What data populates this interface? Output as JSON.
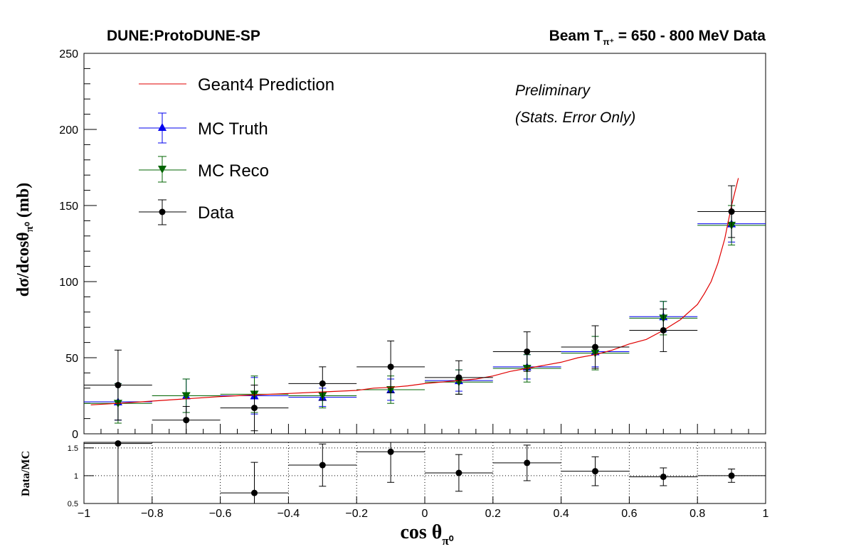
{
  "header": {
    "left_title": "DUNE:ProtoDUNE-SP",
    "right_title_pre": "Beam T",
    "right_title_sub": "π⁺",
    "right_title_post": " = 650 - 800 MeV Data"
  },
  "annotations": {
    "line1": "Preliminary",
    "line2": "(Stats. Error Only)"
  },
  "legend": {
    "geant4": "Geant4 Prediction",
    "mc_truth": "MC Truth",
    "mc_reco": "MC Reco",
    "data": "Data"
  },
  "colors": {
    "geant4": "#e00000",
    "mc_truth": "#0000ee",
    "mc_reco": "#006400",
    "data": "#000000"
  },
  "axes": {
    "ylabel_main": "dσ/dcosθ",
    "ylabel_main_sub": "π⁰",
    "ylabel_main_unit": " (mb)",
    "ylabel_ratio": "Data/MC",
    "xlabel": "cos  θ",
    "xlabel_sub": "π⁰"
  },
  "chart_data": [
    {
      "type": "scatter",
      "panel": "main",
      "xlim": [
        -1,
        1
      ],
      "ylim": [
        0,
        250
      ],
      "x_ticks": [
        -1,
        -0.8,
        -0.6,
        -0.4,
        -0.2,
        0,
        0.2,
        0.4,
        0.6,
        0.8,
        1
      ],
      "x_tick_labels": [
        "−1",
        "−0.8",
        "−0.6",
        "−0.4",
        "−0.2",
        "0",
        "0.2",
        "0.4",
        "0.6",
        "0.8",
        "1"
      ],
      "y_ticks": [
        0,
        50,
        100,
        150,
        200,
        250
      ],
      "y_tick_labels": [
        "0",
        "50",
        "100",
        "150",
        "200",
        "250"
      ],
      "series": [
        {
          "name": "Data",
          "marker": "circle",
          "x": [
            -0.9,
            -0.7,
            -0.5,
            -0.3,
            -0.1,
            0.1,
            0.3,
            0.5,
            0.7,
            0.9
          ],
          "xerr": [
            0.1,
            0.1,
            0.1,
            0.1,
            0.1,
            0.1,
            0.1,
            0.1,
            0.1,
            0.1
          ],
          "y": [
            32,
            9,
            17,
            33,
            44,
            37,
            54,
            57,
            68,
            146
          ],
          "yerr": [
            23,
            9,
            15,
            11,
            17,
            11,
            13,
            14,
            14,
            17
          ]
        },
        {
          "name": "MC Truth",
          "marker": "triangle-up",
          "x": [
            -0.9,
            -0.7,
            -0.5,
            -0.3,
            -0.1,
            0.1,
            0.3,
            0.5,
            0.7,
            0.9
          ],
          "xerr": [
            0.1,
            0.1,
            0.1,
            0.1,
            0.1,
            0.1,
            0.1,
            0.1,
            0.1,
            0.1
          ],
          "y": [
            21,
            25,
            25,
            24,
            29,
            35,
            44,
            54,
            77,
            138
          ],
          "yerr": [
            12,
            11,
            12,
            6,
            7,
            7,
            8,
            10,
            10,
            12
          ]
        },
        {
          "name": "MC Reco",
          "marker": "triangle-down",
          "x": [
            -0.9,
            -0.7,
            -0.5,
            -0.3,
            -0.1,
            0.1,
            0.3,
            0.5,
            0.7,
            0.9
          ],
          "xerr": [
            0.1,
            0.1,
            0.1,
            0.1,
            0.1,
            0.1,
            0.1,
            0.1,
            0.1,
            0.1
          ],
          "y": [
            20,
            25,
            26,
            25,
            29,
            34,
            43,
            53,
            76,
            137
          ],
          "yerr": [
            13,
            11,
            12,
            8,
            9,
            8,
            9,
            11,
            11,
            13
          ]
        },
        {
          "name": "Geant4 Prediction",
          "type": "line",
          "x": [
            -0.98,
            -0.9,
            -0.8,
            -0.7,
            -0.6,
            -0.5,
            -0.4,
            -0.3,
            -0.2,
            -0.15,
            -0.1,
            -0.05,
            0,
            0.05,
            0.1,
            0.15,
            0.2,
            0.25,
            0.3,
            0.35,
            0.4,
            0.45,
            0.5,
            0.55,
            0.6,
            0.65,
            0.7,
            0.75,
            0.8,
            0.82,
            0.84,
            0.86,
            0.88,
            0.9,
            0.92
          ],
          "y": [
            19,
            20,
            21.5,
            23,
            24.5,
            25.5,
            26.5,
            27.5,
            28.5,
            30,
            30.5,
            31.5,
            33,
            34,
            35,
            36,
            38,
            41,
            43,
            45,
            47,
            50,
            52,
            55,
            59,
            62,
            68,
            75,
            85,
            92,
            100,
            112,
            128,
            150,
            168
          ]
        }
      ]
    },
    {
      "type": "scatter",
      "panel": "ratio",
      "xlim": [
        -1,
        1
      ],
      "ylim": [
        0.5,
        1.6
      ],
      "y_ticks": [
        0.5,
        1,
        1.5
      ],
      "y_tick_labels": [
        "0.5",
        "1",
        "1.5"
      ],
      "series": [
        {
          "name": "Data/MC",
          "marker": "circle",
          "x": [
            -0.9,
            -0.5,
            -0.3,
            -0.1,
            0.1,
            0.3,
            0.5,
            0.7,
            0.9
          ],
          "xerr": [
            0.1,
            0.1,
            0.1,
            0.1,
            0.1,
            0.1,
            0.1,
            0.1,
            0.1
          ],
          "y": [
            1.58,
            0.69,
            1.19,
            1.43,
            1.05,
            1.23,
            1.08,
            0.98,
            1.0
          ],
          "yerr": [
            1.1,
            0.55,
            0.38,
            0.55,
            0.33,
            0.32,
            0.26,
            0.16,
            0.12
          ]
        }
      ]
    }
  ]
}
